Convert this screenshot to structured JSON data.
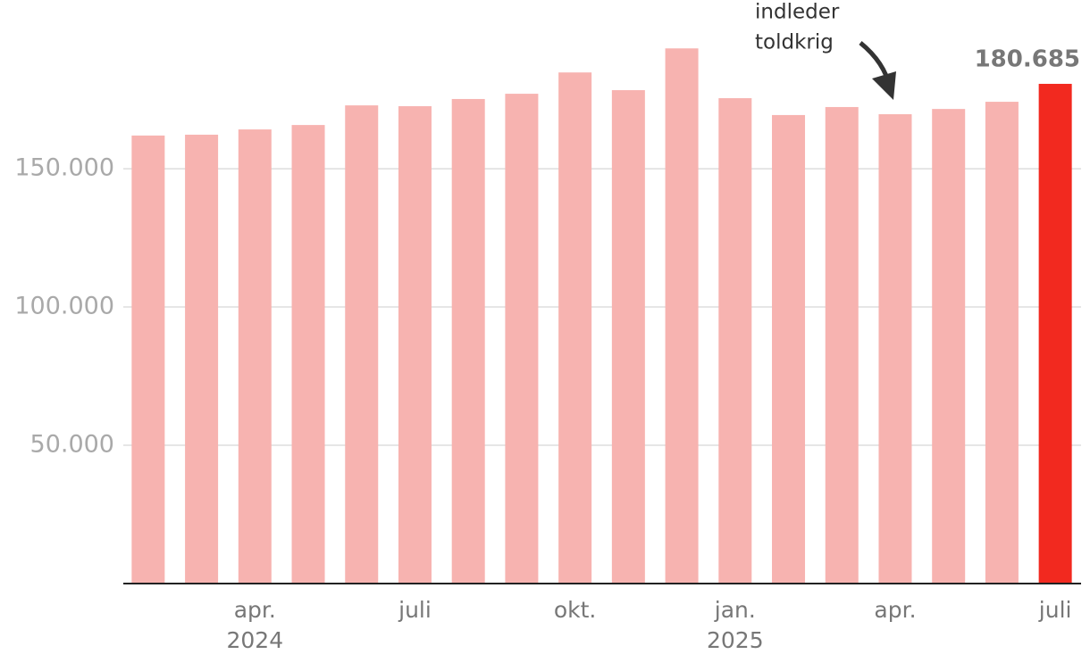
{
  "chart_data": {
    "type": "bar",
    "categories": [
      null,
      null,
      "apr.",
      null,
      null,
      "juli",
      null,
      null,
      "okt.",
      null,
      null,
      "jan.",
      null,
      null,
      "apr.",
      null,
      null,
      "juli"
    ],
    "years": [
      null,
      null,
      "2024",
      null,
      null,
      null,
      null,
      null,
      null,
      null,
      null,
      "2025",
      null,
      null,
      null,
      null,
      null,
      null
    ],
    "values": [
      162000,
      162300,
      164200,
      165800,
      172900,
      172600,
      175200,
      177100,
      184800,
      178400,
      193500,
      175500,
      169400,
      172300,
      169700,
      171600,
      174200,
      180685
    ],
    "value_labels": [
      null,
      null,
      null,
      null,
      null,
      null,
      null,
      null,
      null,
      null,
      null,
      null,
      null,
      null,
      null,
      null,
      null,
      "180.685"
    ],
    "colors": [
      "#f7b3b0",
      "#f7b3b0",
      "#f7b3b0",
      "#f7b3b0",
      "#f7b3b0",
      "#f7b3b0",
      "#f7b3b0",
      "#f7b3b0",
      "#f7b3b0",
      "#f7b3b0",
      "#f7b3b0",
      "#f7b3b0",
      "#f7b3b0",
      "#f7b3b0",
      "#f7b3b0",
      "#f7b3b0",
      "#f7b3b0",
      "#f2291f"
    ],
    "ylim": [
      0,
      211000
    ],
    "yticks": [
      {
        "value": 50000,
        "label": "50.000"
      },
      {
        "value": 100000,
        "label": "100.000"
      },
      {
        "value": 150000,
        "label": "150.000"
      }
    ],
    "grid": true,
    "annotation": [
      "indleder",
      "toldkrig"
    ]
  }
}
